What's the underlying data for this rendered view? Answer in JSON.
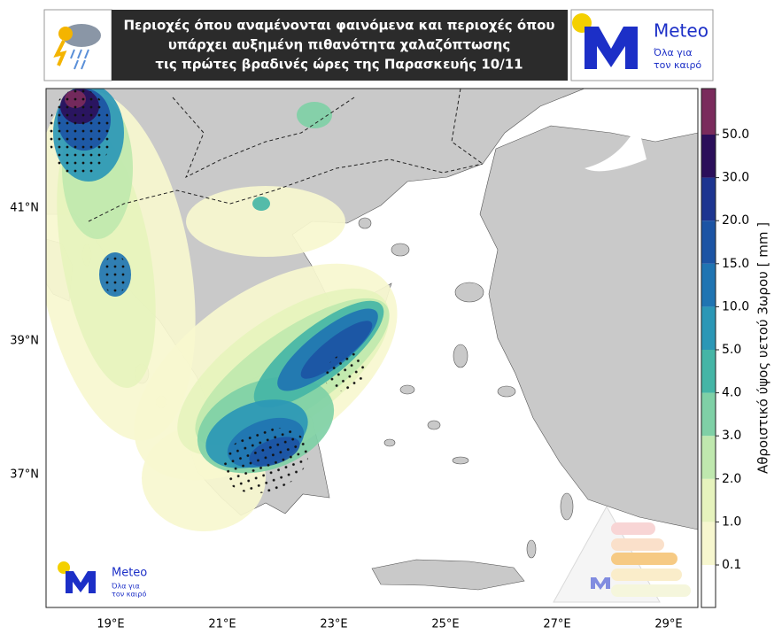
{
  "header": {
    "title_lines": [
      "Περιοχές όπου αναμένονται φαινόμενα και περιοχές όπου",
      "υπάρχει αυξημένη πιθανότητα χαλαζόπτωσης",
      "τις πρώτες βραδινές ώρες της Παρασκευής 10/11"
    ],
    "logo": {
      "name": "Meteo",
      "tagline_lines": [
        "Όλα για",
        "τον καιρό"
      ]
    }
  },
  "map": {
    "lat_labels": [
      "41°N",
      "39°N",
      "37°N"
    ],
    "lon_labels": [
      "19°E",
      "21°E",
      "23°E",
      "25°E",
      "27°E",
      "29°E"
    ]
  },
  "colorbar": {
    "label": "Αθροιστικό ύψος υετού 3ωρου [ mm ]",
    "ticks": [
      0.1,
      {
        "value": 1,
        "label": "1.0"
      },
      {
        "value": 2,
        "label": "2.0"
      },
      {
        "value": 3,
        "label": "3.0"
      },
      {
        "value": 4,
        "label": "4.0"
      },
      {
        "value": 5,
        "label": "5.0"
      },
      {
        "value": 10,
        "label": "10.0"
      },
      {
        "value": 15,
        "label": "15.0"
      },
      {
        "value": 20,
        "label": "20.0"
      },
      {
        "value": 30,
        "label": "30.0"
      },
      {
        "value": 50,
        "label": "50.0"
      }
    ],
    "colors": [
      "#ffffff",
      "#f7f7cf",
      "#e6f3bd",
      "#bfe8ae",
      "#7fd0a6",
      "#45b5a6",
      "#2b97b6",
      "#1f74b2",
      "#1c54a4",
      "#1d3590",
      "#2b0f5a",
      "#7a2b5c"
    ]
  },
  "footer_logo": {
    "name": "Meteo",
    "tagline_lines": [
      "Όλα για",
      "τον καιρό"
    ]
  }
}
